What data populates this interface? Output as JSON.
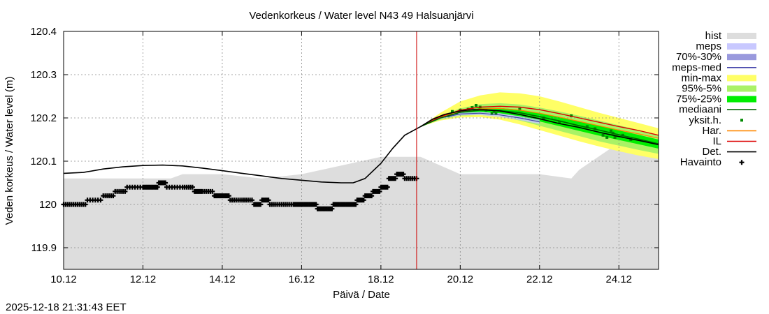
{
  "chart_data": {
    "type": "line",
    "title": "Vedenkorkeus / Water level   N43 49 Halsuanjärvi",
    "xlabel": "Päivä / Date",
    "ylabel": "Veden korkeus / Water level (m)",
    "timestamp": "2025-12-18 21:31:43 EET",
    "xlim": [
      10,
      25
    ],
    "ylim": [
      119.85,
      120.4
    ],
    "now_day": 18.9,
    "x_ticks": [
      {
        "day": 10,
        "label": "10.12"
      },
      {
        "day": 12,
        "label": "12.12"
      },
      {
        "day": 14,
        "label": "14.12"
      },
      {
        "day": 16,
        "label": "16.12"
      },
      {
        "day": 18,
        "label": "18.12"
      },
      {
        "day": 20,
        "label": "20.12"
      },
      {
        "day": 22,
        "label": "22.12"
      },
      {
        "day": 24,
        "label": "24.12"
      }
    ],
    "y_ticks": [
      {
        "value": 119.9,
        "label": "119.9"
      },
      {
        "value": 120.0,
        "label": "120"
      },
      {
        "value": 120.1,
        "label": "120.1"
      },
      {
        "value": 120.2,
        "label": "120.2"
      },
      {
        "value": 120.3,
        "label": "120.3"
      },
      {
        "value": 120.4,
        "label": "120.4"
      }
    ],
    "legend": [
      {
        "key": "hist",
        "label": "hist",
        "kind": "band",
        "color": "#dddddd"
      },
      {
        "key": "meps",
        "label": "meps",
        "kind": "band",
        "color": "#c8c8ff"
      },
      {
        "key": "meps70",
        "label": "70%-30%",
        "kind": "band",
        "color": "#9999dd"
      },
      {
        "key": "mepsmed",
        "label": "meps-med",
        "kind": "line",
        "color": "#4444aa"
      },
      {
        "key": "minmax",
        "label": "min-max",
        "kind": "band",
        "color": "#ffff66"
      },
      {
        "key": "p95",
        "label": "95%-5%",
        "kind": "band",
        "color": "#aaf266"
      },
      {
        "key": "p75",
        "label": "75%-25%",
        "kind": "band",
        "color": "#00ee00"
      },
      {
        "key": "median",
        "label": "mediaani",
        "kind": "line",
        "color": "#006600"
      },
      {
        "key": "yksit",
        "label": "yksit.h.",
        "kind": "dot",
        "color": "#008800"
      },
      {
        "key": "har",
        "label": "Har.",
        "kind": "line",
        "color": "#ff8800"
      },
      {
        "key": "il",
        "label": "IL",
        "kind": "line",
        "color": "#dd0000"
      },
      {
        "key": "det",
        "label": "Det.",
        "kind": "line",
        "color": "#000000"
      },
      {
        "key": "havainto",
        "label": "Havainto",
        "kind": "cross",
        "color": "#000000"
      }
    ],
    "series": {
      "hist_upper": {
        "x": [
          10,
          11,
          12,
          12.7,
          13,
          14,
          15,
          16,
          17,
          18,
          19,
          20,
          21,
          22,
          22.8,
          23,
          23.8,
          24,
          25
        ],
        "y": [
          120.06,
          120.06,
          120.06,
          120.06,
          120.07,
          120.07,
          120.06,
          120.07,
          120.09,
          120.11,
          120.11,
          120.07,
          120.07,
          120.07,
          120.06,
          120.08,
          120.13,
          120.14,
          120.12
        ]
      },
      "det": {
        "x": [
          10,
          10.5,
          11,
          11.5,
          12,
          12.5,
          13,
          13.5,
          14,
          14.5,
          15,
          15.5,
          16,
          16.5,
          17,
          17.3,
          17.6,
          18,
          18.3,
          18.6,
          19,
          19.3,
          19.6,
          20,
          20.3,
          20.6,
          21,
          21.5,
          22,
          22.5,
          23,
          23.5,
          24,
          24.5,
          25
        ],
        "y": [
          120.072,
          120.074,
          120.082,
          120.087,
          120.09,
          120.091,
          120.089,
          120.084,
          120.078,
          120.072,
          120.066,
          120.06,
          120.056,
          120.052,
          120.05,
          120.05,
          120.06,
          120.095,
          120.13,
          120.16,
          120.18,
          120.197,
          120.208,
          120.216,
          120.219,
          120.219,
          120.216,
          120.208,
          120.198,
          120.187,
          120.178,
          120.167,
          120.157,
          120.148,
          120.138
        ]
      },
      "il": {
        "x": [
          19,
          19.5,
          20,
          20.5,
          21,
          21.5,
          22,
          22.5,
          23,
          23.5,
          24,
          24.5,
          25
        ],
        "y": [
          120.18,
          120.203,
          120.218,
          120.225,
          120.227,
          120.225,
          120.219,
          120.21,
          120.2,
          120.19,
          120.18,
          120.171,
          120.16
        ]
      },
      "har": {
        "x": [
          19,
          19.5,
          20,
          20.5,
          21,
          21.5,
          22,
          22.5,
          23,
          23.5,
          24,
          24.5,
          25
        ],
        "y": [
          120.18,
          120.201,
          120.215,
          120.221,
          120.222,
          120.218,
          120.211,
          120.202,
          120.192,
          120.182,
          120.172,
          120.163,
          120.153
        ]
      },
      "meps_med": {
        "x": [
          19,
          19.5,
          20,
          20.5,
          21,
          21.5,
          22
        ],
        "y": [
          120.18,
          120.2,
          120.209,
          120.211,
          120.207,
          120.2,
          120.191
        ]
      },
      "median": {
        "x": [
          19,
          19.5,
          20,
          20.5,
          21,
          21.5,
          22,
          22.5,
          23,
          23.5,
          24,
          24.5,
          25
        ],
        "y": [
          120.18,
          120.2,
          120.213,
          120.218,
          120.217,
          120.212,
          120.203,
          120.193,
          120.182,
          120.172,
          120.161,
          120.151,
          120.14
        ]
      },
      "p75": {
        "x": [
          19,
          19.5,
          20,
          20.5,
          21,
          21.5,
          22,
          22.5,
          23,
          23.5,
          24,
          24.5,
          25
        ],
        "upper": [
          120.18,
          120.202,
          120.216,
          120.223,
          120.223,
          120.219,
          120.211,
          120.202,
          120.192,
          120.182,
          120.171,
          120.161,
          120.15
        ],
        "lower": [
          120.18,
          120.198,
          120.209,
          120.213,
          120.21,
          120.203,
          120.192,
          120.181,
          120.17,
          120.159,
          120.149,
          120.139,
          120.129
        ]
      },
      "p95": {
        "x": [
          19,
          19.5,
          20,
          20.5,
          21,
          21.5,
          22,
          22.5,
          23,
          23.5,
          24,
          24.5,
          25
        ],
        "upper": [
          120.18,
          120.205,
          120.222,
          120.232,
          120.234,
          120.231,
          120.224,
          120.215,
          120.205,
          120.194,
          120.183,
          120.172,
          120.16
        ],
        "lower": [
          120.18,
          120.196,
          120.205,
          120.207,
          120.203,
          120.194,
          120.182,
          120.17,
          120.158,
          120.146,
          120.136,
          120.126,
          120.117
        ]
      },
      "minmax": {
        "x": [
          19,
          19.5,
          20,
          20.5,
          21,
          21.5,
          22,
          22.5,
          23,
          23.5,
          24,
          24.5,
          25
        ],
        "upper": [
          120.18,
          120.212,
          120.238,
          120.252,
          120.259,
          120.257,
          120.25,
          120.238,
          120.225,
          120.212,
          120.2,
          120.188,
          120.176
        ],
        "lower": [
          120.18,
          120.194,
          120.201,
          120.202,
          120.196,
          120.185,
          120.172,
          120.159,
          120.146,
          120.134,
          120.123,
          120.113,
          120.105
        ]
      },
      "meps_band": {
        "x": [
          19,
          19.5,
          20,
          20.5,
          21,
          21.5,
          22
        ],
        "upper": [
          120.18,
          120.202,
          120.212,
          120.214,
          120.211,
          120.204,
          120.196
        ],
        "lower": [
          120.18,
          120.198,
          120.206,
          120.207,
          120.202,
          120.195,
          120.186
        ]
      },
      "yksit": {
        "x": [
          19.7,
          19.75,
          19.8,
          19.9,
          20.0,
          20.1,
          20.2,
          20.3,
          20.4,
          20.5,
          20.65,
          20.8,
          20.85,
          20.9,
          21.5,
          22.1,
          22.5,
          22.8,
          23.2,
          23.4,
          23.6,
          23.7,
          23.8,
          23.85,
          23.9,
          24.1,
          24.3
        ],
        "y": [
          120.205,
          120.207,
          120.215,
          120.212,
          120.218,
          120.217,
          120.22,
          120.224,
          120.229,
          120.225,
          120.218,
          120.21,
          120.215,
          120.21,
          120.22,
          120.2,
          120.19,
          120.205,
          120.18,
          120.175,
          120.16,
          120.155,
          120.17,
          120.165,
          120.155,
          120.16,
          120.15
        ]
      },
      "havainto": {
        "x": [
          10,
          10.3,
          10.6,
          11,
          11.3,
          11.6,
          12,
          12.2,
          12.4,
          12.6,
          13,
          13.3,
          13.5,
          13.8,
          14,
          14.2,
          14.5,
          14.8,
          15,
          15.2,
          15.5,
          15.8,
          16,
          16.2,
          16.4,
          16.6,
          16.8,
          17,
          17.2,
          17.4,
          17.6,
          17.8,
          18,
          18.2,
          18.4,
          18.6,
          18.9
        ],
        "y": [
          120,
          120,
          120.01,
          120.02,
          120.03,
          120.04,
          120.04,
          120.04,
          120.05,
          120.04,
          120.04,
          120.03,
          120.03,
          120.02,
          120.02,
          120.01,
          120.01,
          120,
          120.01,
          120,
          120,
          120,
          120,
          120,
          119.99,
          119.99,
          120,
          120,
          120,
          120.01,
          120.02,
          120.03,
          120.04,
          120.06,
          120.07,
          120.06,
          120.06
        ]
      }
    }
  }
}
